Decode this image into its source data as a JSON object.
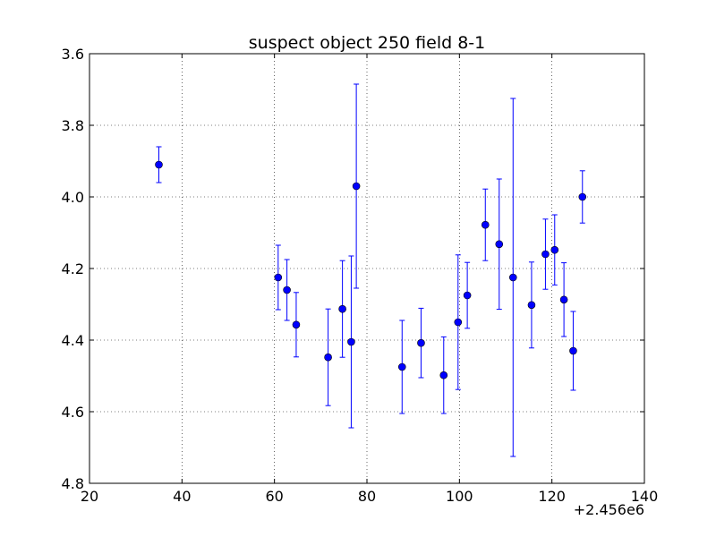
{
  "chart_data": {
    "type": "scatter",
    "title": "suspect object 250 field 8-1",
    "xlabel": "",
    "ylabel": "",
    "x_offset_label": "+2.456e6",
    "xlim": [
      20,
      140
    ],
    "ylim": [
      4.8,
      3.6
    ],
    "y_inverted": true,
    "grid": true,
    "marker_color": "#0000ff",
    "x_ticks": [
      "20",
      "40",
      "60",
      "80",
      "100",
      "120",
      "140"
    ],
    "y_ticks": [
      "3.6",
      "3.8",
      "4.0",
      "4.2",
      "4.4",
      "4.6",
      "4.8"
    ],
    "points": [
      {
        "x": 35.0,
        "y": 3.91,
        "err": 0.05
      },
      {
        "x": 60.8,
        "y": 4.225,
        "err": 0.09
      },
      {
        "x": 62.7,
        "y": 4.26,
        "err": 0.085
      },
      {
        "x": 64.7,
        "y": 4.357,
        "err": 0.09
      },
      {
        "x": 71.6,
        "y": 4.448,
        "err": 0.135
      },
      {
        "x": 74.7,
        "y": 4.313,
        "err": 0.135
      },
      {
        "x": 76.6,
        "y": 4.405,
        "err": 0.24
      },
      {
        "x": 77.7,
        "y": 3.97,
        "err": 0.285
      },
      {
        "x": 87.6,
        "y": 4.475,
        "err": 0.13
      },
      {
        "x": 91.7,
        "y": 4.408,
        "err": 0.097
      },
      {
        "x": 96.6,
        "y": 4.498,
        "err": 0.107
      },
      {
        "x": 99.7,
        "y": 4.35,
        "err": 0.188
      },
      {
        "x": 101.7,
        "y": 4.275,
        "err": 0.092
      },
      {
        "x": 105.6,
        "y": 4.078,
        "err": 0.1
      },
      {
        "x": 108.6,
        "y": 4.132,
        "err": 0.182
      },
      {
        "x": 111.6,
        "y": 4.225,
        "err": 0.5
      },
      {
        "x": 115.6,
        "y": 4.302,
        "err": 0.12
      },
      {
        "x": 118.6,
        "y": 4.16,
        "err": 0.098
      },
      {
        "x": 120.6,
        "y": 4.148,
        "err": 0.098
      },
      {
        "x": 122.6,
        "y": 4.287,
        "err": 0.103
      },
      {
        "x": 124.6,
        "y": 4.43,
        "err": 0.11
      },
      {
        "x": 126.6,
        "y": 4.0,
        "err": 0.073
      }
    ]
  }
}
